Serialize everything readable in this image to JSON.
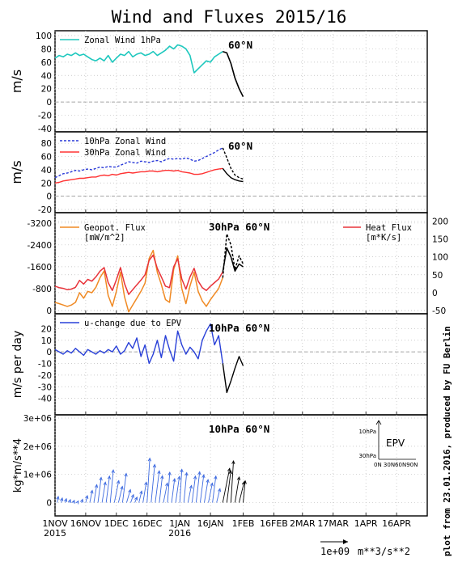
{
  "title": "Wind and Fluxes 2015/16",
  "side_note": "plot from 23.01.2016, produced by FU Berlin",
  "bottom_scale": {
    "value_label": "1e+09",
    "unit_label": "m**3/s**2"
  },
  "x_axis": {
    "ticks": [
      {
        "day": 0,
        "label": "1NOV"
      },
      {
        "day": 15,
        "label": "16NOV"
      },
      {
        "day": 30,
        "label": "1DEC"
      },
      {
        "day": 45,
        "label": "16DEC"
      },
      {
        "day": 61,
        "label": "1JAN"
      },
      {
        "day": 76,
        "label": "16JAN"
      },
      {
        "day": 92,
        "label": "1FEB"
      },
      {
        "day": 107,
        "label": "16FEB"
      },
      {
        "day": 121,
        "label": "2MAR"
      },
      {
        "day": 136,
        "label": "17MAR"
      },
      {
        "day": 152,
        "label": "1APR"
      },
      {
        "day": 167,
        "label": "16APR"
      }
    ],
    "year_labels": [
      {
        "day": 0,
        "label": "2015"
      },
      {
        "day": 61,
        "label": "2016"
      }
    ],
    "range_days": [
      0,
      182
    ]
  },
  "chart_data": [
    {
      "type": "line",
      "panel": "zonal-wind-1hpa",
      "annotation": "60°N",
      "ylabel": "m/s",
      "ylim": [
        -40,
        100
      ],
      "yticks": [
        -40,
        -20,
        0,
        20,
        40,
        60,
        80,
        100
      ],
      "x": [
        0,
        2,
        4,
        6,
        8,
        10,
        12,
        14,
        16,
        18,
        20,
        22,
        24,
        26,
        28,
        30,
        32,
        34,
        36,
        38,
        40,
        42,
        44,
        46,
        48,
        50,
        52,
        54,
        56,
        58,
        60,
        62,
        64,
        66,
        68,
        70,
        72,
        74,
        76,
        78,
        80,
        82,
        84,
        86,
        88,
        90,
        92
      ],
      "series": [
        {
          "name": "Zonal Wind 1hPa",
          "color": "#1ec8be",
          "values": [
            66,
            70,
            68,
            72,
            70,
            74,
            70,
            72,
            68,
            64,
            62,
            66,
            62,
            70,
            60,
            66,
            72,
            70,
            76,
            68,
            72,
            74,
            70,
            72,
            76,
            70,
            74,
            78,
            84,
            80,
            86,
            84,
            80,
            70,
            44,
            50,
            56,
            62,
            60,
            68,
            72,
            76,
            null,
            null,
            null,
            null,
            null
          ]
        },
        {
          "name": "",
          "color": "#000000",
          "values": [
            null,
            null,
            null,
            null,
            null,
            null,
            null,
            null,
            null,
            null,
            null,
            null,
            null,
            null,
            null,
            null,
            null,
            null,
            null,
            null,
            null,
            null,
            null,
            null,
            null,
            null,
            null,
            null,
            null,
            null,
            null,
            null,
            null,
            null,
            null,
            null,
            null,
            null,
            null,
            null,
            null,
            76,
            74,
            58,
            36,
            20,
            8
          ]
        }
      ]
    },
    {
      "type": "line",
      "panel": "zonal-wind-10-30hpa",
      "annotation": "60°N",
      "ylabel": "m/s",
      "ylim": [
        -20,
        90
      ],
      "yticks": [
        -20,
        0,
        20,
        40,
        60,
        80
      ],
      "x": [
        0,
        2,
        4,
        6,
        8,
        10,
        12,
        14,
        16,
        18,
        20,
        22,
        24,
        26,
        28,
        30,
        32,
        34,
        36,
        38,
        40,
        42,
        44,
        46,
        48,
        50,
        52,
        54,
        56,
        58,
        60,
        62,
        64,
        66,
        68,
        70,
        72,
        74,
        76,
        78,
        80,
        82,
        84,
        86,
        88,
        90,
        92
      ],
      "series": [
        {
          "name": "10hPa Zonal Wind",
          "color": "#2a3ad8",
          "dash": true,
          "values": [
            28,
            31,
            34,
            35,
            37,
            39,
            38,
            40,
            41,
            40,
            42,
            44,
            43,
            45,
            44,
            44,
            47,
            49,
            52,
            51,
            50,
            53,
            52,
            51,
            53,
            54,
            52,
            55,
            57,
            56,
            57,
            56,
            58,
            56,
            53,
            54,
            57,
            60,
            63,
            66,
            70,
            73,
            null,
            null,
            null,
            null,
            null
          ]
        },
        {
          "name": "30hPa Zonal Wind",
          "color": "#ff3333",
          "values": [
            20,
            21,
            23,
            24,
            25,
            26,
            27,
            27,
            28,
            29,
            29,
            31,
            32,
            31,
            33,
            32,
            34,
            35,
            36,
            35,
            36,
            37,
            37,
            38,
            38,
            37,
            38,
            39,
            39,
            38,
            39,
            37,
            36,
            35,
            33,
            33,
            34,
            36,
            38,
            40,
            41,
            42,
            null,
            null,
            null,
            null,
            null
          ]
        },
        {
          "name": "",
          "color": "#000000",
          "dash": true,
          "values": [
            null,
            null,
            null,
            null,
            null,
            null,
            null,
            null,
            null,
            null,
            null,
            null,
            null,
            null,
            null,
            null,
            null,
            null,
            null,
            null,
            null,
            null,
            null,
            null,
            null,
            null,
            null,
            null,
            null,
            null,
            null,
            null,
            null,
            null,
            null,
            null,
            null,
            null,
            null,
            null,
            null,
            73,
            58,
            42,
            32,
            28,
            26
          ]
        },
        {
          "name": "",
          "color": "#000000",
          "values": [
            null,
            null,
            null,
            null,
            null,
            null,
            null,
            null,
            null,
            null,
            null,
            null,
            null,
            null,
            null,
            null,
            null,
            null,
            null,
            null,
            null,
            null,
            null,
            null,
            null,
            null,
            null,
            null,
            null,
            null,
            null,
            null,
            null,
            null,
            null,
            null,
            null,
            null,
            null,
            null,
            null,
            42,
            34,
            28,
            25,
            23,
            22
          ]
        }
      ]
    },
    {
      "type": "line",
      "panel": "geopotential-and-heat-flux",
      "annotation": "30hPa 60°N",
      "ylim": [
        0,
        -3400
      ],
      "yticks": [
        0,
        -800,
        -1600,
        -2400,
        -3200
      ],
      "ylim_right": [
        -50,
        210
      ],
      "yticks_right": [
        -50,
        0,
        50,
        100,
        150,
        200
      ],
      "x": [
        0,
        2,
        4,
        6,
        8,
        10,
        12,
        14,
        16,
        18,
        20,
        22,
        24,
        26,
        28,
        30,
        32,
        34,
        36,
        38,
        40,
        42,
        44,
        46,
        48,
        50,
        52,
        54,
        56,
        58,
        60,
        62,
        64,
        66,
        68,
        70,
        72,
        74,
        76,
        78,
        80,
        82,
        84,
        86,
        88,
        90,
        92
      ],
      "series": [
        {
          "name": "Geopot. Flux [mW/m^2]",
          "color": "#f08a24",
          "axis": "left",
          "values": [
            -300,
            -250,
            -200,
            -150,
            -200,
            -300,
            -650,
            -450,
            -700,
            -650,
            -850,
            -1200,
            -1450,
            -550,
            -150,
            -700,
            -1400,
            -500,
            50,
            -200,
            -450,
            -700,
            -1000,
            -1900,
            -2200,
            -1400,
            -950,
            -400,
            -300,
            -1500,
            -2000,
            -800,
            -250,
            -900,
            -1400,
            -700,
            -350,
            -150,
            -400,
            -600,
            -800,
            -1200,
            null,
            null,
            null,
            null,
            null
          ]
        },
        {
          "name": "Heat Flux [m*K/s]",
          "color": "#e8333a",
          "axis": "right",
          "values": [
            18,
            14,
            12,
            8,
            10,
            15,
            34,
            24,
            37,
            32,
            44,
            60,
            70,
            28,
            6,
            36,
            70,
            25,
            -5,
            8,
            22,
            35,
            50,
            90,
            105,
            68,
            44,
            18,
            14,
            72,
            95,
            38,
            10,
            44,
            68,
            32,
            14,
            6,
            18,
            28,
            38,
            58,
            null,
            null,
            null,
            null,
            null
          ]
        },
        {
          "name": "",
          "color": "#000000",
          "axis": "left",
          "dash": true,
          "values": [
            null,
            null,
            null,
            null,
            null,
            null,
            null,
            null,
            null,
            null,
            null,
            null,
            null,
            null,
            null,
            null,
            null,
            null,
            null,
            null,
            null,
            null,
            null,
            null,
            null,
            null,
            null,
            null,
            null,
            null,
            null,
            null,
            null,
            null,
            null,
            null,
            null,
            null,
            null,
            null,
            null,
            -1200,
            -2800,
            -2400,
            -1500,
            -2000,
            -1700
          ]
        },
        {
          "name": "",
          "color": "#000000",
          "axis": "right",
          "values": [
            null,
            null,
            null,
            null,
            null,
            null,
            null,
            null,
            null,
            null,
            null,
            null,
            null,
            null,
            null,
            null,
            null,
            null,
            null,
            null,
            null,
            null,
            null,
            null,
            null,
            null,
            null,
            null,
            null,
            null,
            null,
            null,
            null,
            null,
            null,
            null,
            null,
            null,
            null,
            null,
            null,
            58,
            125,
            100,
            60,
            80,
            72
          ]
        }
      ]
    },
    {
      "type": "line",
      "panel": "u-change-epv",
      "annotation": "10hPa 60°N",
      "ylabel": "m/s per day",
      "ylim": [
        -50,
        30
      ],
      "yticks": [
        -40,
        -30,
        -20,
        -10,
        0,
        10,
        20
      ],
      "x": [
        0,
        2,
        4,
        6,
        8,
        10,
        12,
        14,
        16,
        18,
        20,
        22,
        24,
        26,
        28,
        30,
        32,
        34,
        36,
        38,
        40,
        42,
        44,
        46,
        48,
        50,
        52,
        54,
        56,
        58,
        60,
        62,
        64,
        66,
        68,
        70,
        72,
        74,
        76,
        78,
        80,
        82,
        84,
        86,
        88,
        90,
        92
      ],
      "series": [
        {
          "name": "u-change due to EPV",
          "color": "#2940d8",
          "values": [
            2,
            0,
            -2,
            1,
            -1,
            3,
            0,
            -3,
            2,
            0,
            -2,
            1,
            -1,
            2,
            0,
            5,
            -2,
            1,
            8,
            3,
            12,
            -4,
            6,
            -10,
            -2,
            10,
            -5,
            14,
            2,
            -8,
            18,
            6,
            -2,
            4,
            0,
            -6,
            10,
            18,
            24,
            6,
            14,
            -10,
            null,
            null,
            null,
            null,
            null
          ]
        },
        {
          "name": "",
          "color": "#000000",
          "values": [
            null,
            null,
            null,
            null,
            null,
            null,
            null,
            null,
            null,
            null,
            null,
            null,
            null,
            null,
            null,
            null,
            null,
            null,
            null,
            null,
            null,
            null,
            null,
            null,
            null,
            null,
            null,
            null,
            null,
            null,
            null,
            null,
            null,
            null,
            null,
            null,
            null,
            null,
            null,
            null,
            null,
            -10,
            -35,
            -25,
            -14,
            -4,
            -12
          ]
        }
      ]
    },
    {
      "type": "scatter",
      "panel": "epv-vectors",
      "annotation": "10hPa 60°N",
      "ylabel": "kg*m/s**4",
      "ylim": [
        -300000,
        3000000
      ],
      "ytick_labels": [
        {
          "value": 0,
          "label": "0"
        },
        {
          "value": 1000000,
          "label": "1e+06"
        },
        {
          "value": 2000000,
          "label": "2e+06"
        },
        {
          "value": 3000000,
          "label": "3e+06"
        }
      ],
      "inset": {
        "title": "EPV",
        "y_labels": [
          "10hPa",
          "30hPa"
        ],
        "x_labels": [
          "0N",
          "30N",
          "60N",
          "90N"
        ]
      },
      "series": [
        {
          "name": "",
          "color": "#3d6ae0",
          "x": [
            1,
            3,
            5,
            7,
            9,
            11,
            13,
            15,
            17,
            19,
            21,
            23,
            25,
            27,
            29,
            31,
            33,
            35,
            37,
            39,
            41,
            43,
            45,
            47,
            49,
            51,
            53,
            55,
            57,
            59,
            61,
            63,
            65,
            67,
            69,
            71,
            73,
            75,
            77,
            79
          ],
          "values": [
            250000,
            200000,
            180000,
            150000,
            120000,
            100000,
            150000,
            300000,
            500000,
            700000,
            950000,
            800000,
            1000000,
            1200000,
            900000,
            700000,
            1100000,
            600000,
            400000,
            300000,
            500000,
            800000,
            1600000,
            1400000,
            1200000,
            1000000,
            800000,
            1100000,
            900000,
            1000000,
            1200000,
            1100000,
            700000,
            1000000,
            1150000,
            1050000,
            900000,
            800000,
            1000000,
            600000
          ],
          "angles_deg": [
            60,
            55,
            50,
            45,
            40,
            35,
            50,
            55,
            60,
            65,
            70,
            65,
            70,
            75,
            60,
            55,
            70,
            50,
            45,
            40,
            55,
            65,
            80,
            75,
            70,
            72,
            60,
            78,
            70,
            68,
            80,
            75,
            60,
            70,
            72,
            70,
            65,
            60,
            70,
            55
          ]
        },
        {
          "name": "",
          "color": "#000000",
          "x": [
            82,
            84,
            86,
            88,
            90,
            92
          ],
          "values": [
            1400000,
            1200000,
            1500000,
            1000000,
            900000,
            800000
          ],
          "angles_deg": [
            60,
            70,
            80,
            65,
            55,
            75
          ]
        }
      ]
    }
  ]
}
